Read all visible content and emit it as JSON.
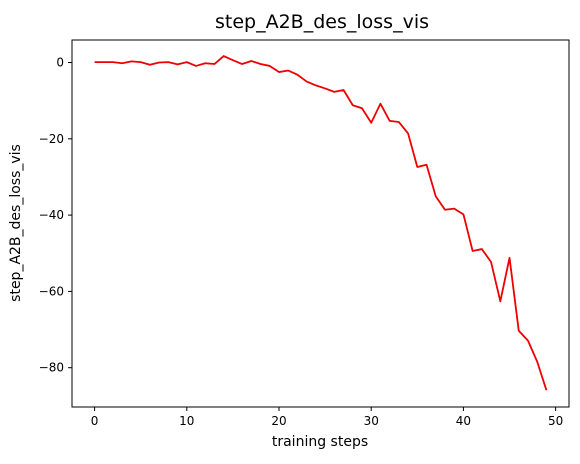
{
  "chart_data": {
    "type": "line",
    "title": "step_A2B_des_loss_vis",
    "xlabel": "training steps",
    "ylabel": "step_A2B_des_loss_vis",
    "xlim": [
      -2.45,
      51.45
    ],
    "ylim": [
      -90.3,
      5.9
    ],
    "xticks": [
      0,
      10,
      20,
      30,
      40,
      50
    ],
    "yticks": [
      0,
      -20,
      -40,
      -60,
      -80
    ],
    "xtick_labels": [
      "0",
      "10",
      "20",
      "30",
      "40",
      "50"
    ],
    "ytick_labels": [
      "0",
      "−20",
      "−40",
      "−60",
      "−80"
    ],
    "grid": false,
    "legend": "none",
    "series": [
      {
        "color": "#ee0000",
        "x": [
          0,
          1,
          2,
          3,
          4,
          5,
          6,
          7,
          8,
          9,
          10,
          11,
          12,
          13,
          14,
          15,
          16,
          17,
          18,
          19,
          20,
          21,
          22,
          23,
          24,
          25,
          26,
          27,
          28,
          29,
          30,
          31,
          32,
          33,
          34,
          35,
          36,
          37,
          38,
          39,
          40,
          41,
          42,
          43,
          44,
          45,
          46,
          47,
          48,
          49
        ],
        "y": [
          0.1,
          0.1,
          0.1,
          -0.2,
          0.3,
          0.1,
          -0.6,
          0.0,
          0.1,
          -0.5,
          0.1,
          -0.9,
          -0.2,
          -0.4,
          1.7,
          0.6,
          -0.4,
          0.4,
          -0.4,
          -0.9,
          -2.5,
          -2.1,
          -3.2,
          -5.0,
          -6.0,
          -6.8,
          -7.7,
          -7.2,
          -11.2,
          -12.0,
          -15.8,
          -10.8,
          -15.3,
          -15.6,
          -18.6,
          -27.4,
          -26.8,
          -35.1,
          -38.6,
          -38.3,
          -39.8,
          -49.4,
          -48.9,
          -52.3,
          -62.6,
          -51.2,
          -70.3,
          -72.9,
          -78.4,
          -85.9
        ]
      }
    ]
  }
}
